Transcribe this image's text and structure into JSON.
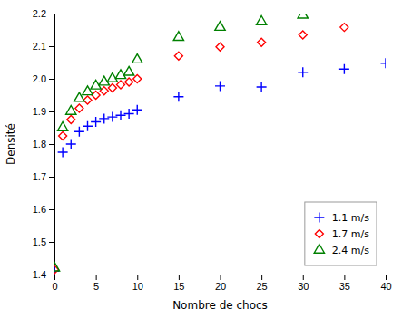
{
  "chart_data": {
    "type": "scatter",
    "x_label": "Nombre de chocs",
    "y_label": "Densité",
    "series": [
      {
        "name": "1.1 m/s",
        "color": "blue",
        "marker": "plus",
        "x": [
          0,
          1,
          2,
          3,
          4,
          5,
          6,
          7,
          8,
          9,
          10,
          15,
          20,
          25,
          30,
          35,
          40
        ],
        "values": [
          1.41,
          1.775,
          1.8,
          1.838,
          1.855,
          1.868,
          1.878,
          1.883,
          1.888,
          1.893,
          1.905,
          1.945,
          1.978,
          1.975,
          2.02,
          2.03,
          2.048
        ]
      },
      {
        "name": "1.7 m/s",
        "color": "red",
        "marker": "diamond",
        "x": [
          0,
          1,
          2,
          3,
          4,
          5,
          6,
          7,
          8,
          9,
          10,
          15,
          20,
          25,
          30,
          35
        ],
        "values": [
          1.415,
          1.825,
          1.875,
          1.91,
          1.935,
          1.95,
          1.963,
          1.972,
          1.982,
          1.99,
          2.0,
          2.07,
          2.098,
          2.112,
          2.135,
          2.158
        ]
      },
      {
        "name": "2.4 m/s",
        "color": "green",
        "marker": "triangle",
        "x": [
          0,
          1,
          2,
          3,
          4,
          5,
          6,
          7,
          8,
          9,
          10,
          15,
          20,
          25,
          30
        ],
        "values": [
          1.42,
          1.85,
          1.9,
          1.94,
          1.96,
          1.978,
          1.99,
          2.0,
          2.01,
          2.02,
          2.058,
          2.127,
          2.158,
          2.175,
          2.195
        ]
      }
    ],
    "xlim": [
      0,
      40
    ],
    "ylim": [
      1.4,
      2.2
    ],
    "xticks": [
      0,
      5,
      10,
      15,
      20,
      25,
      30,
      35,
      40
    ],
    "yticks": [
      1.4,
      1.5,
      1.6,
      1.7,
      1.8,
      1.9,
      {
        "value": 2.0,
        "label": "2.0"
      },
      2.1,
      2.2
    ],
    "grid": false,
    "legend": "lower right"
  }
}
